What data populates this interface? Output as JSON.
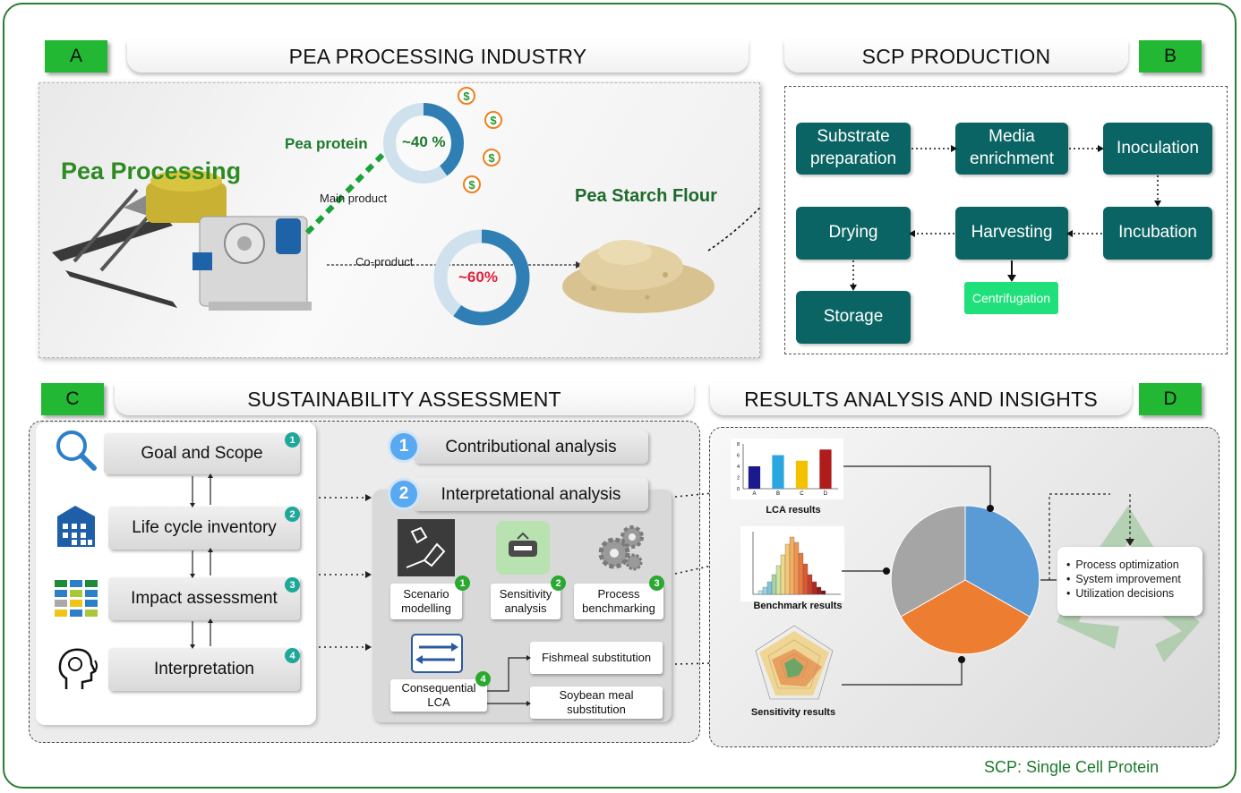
{
  "panel_a": {
    "letter": "A",
    "title": "PEA PROCESSING INDUSTRY",
    "pea_processing": "Pea Processing",
    "pea_protein": "Pea protein",
    "protein_share": "~40 %",
    "main_product": "Main product",
    "co_product": "Co-product",
    "starch_share": "~60%",
    "starch_flour": "Pea Starch Flour",
    "protein_fraction": 0.4,
    "starch_fraction": 0.6
  },
  "panel_b": {
    "letter": "B",
    "title": "SCP PRODUCTION",
    "steps": {
      "substrate": "Substrate preparation",
      "media": "Media enrichment",
      "inoculation": "Inoculation",
      "incubation": "Incubation",
      "harvesting": "Harvesting",
      "drying": "Drying",
      "storage": "Storage",
      "centrifugation": "Centrifugation"
    }
  },
  "panel_c": {
    "letter": "C",
    "title": "SUSTAINABILITY ASSESSMENT",
    "steps": [
      {
        "num": "1",
        "label": "Goal and Scope",
        "icon": "magnifier-icon"
      },
      {
        "num": "2",
        "label": "Life cycle inventory",
        "icon": "building-icon"
      },
      {
        "num": "3",
        "label": "Impact assessment",
        "icon": "matrix-icon"
      },
      {
        "num": "4",
        "label": "Interpretation",
        "icon": "head-icon"
      }
    ],
    "contributional": {
      "num": "1",
      "label": "Contributional analysis"
    },
    "interpretational": {
      "num": "2",
      "label": "Interpretational analysis"
    },
    "tools": [
      {
        "num": "1",
        "label": "Scenario modelling"
      },
      {
        "num": "2",
        "label": "Sensitivity analysis"
      },
      {
        "num": "3",
        "label": "Process benchmarking"
      },
      {
        "num": "4",
        "label": "Consequential LCA"
      }
    ],
    "substitutions": [
      "Fishmeal substitution",
      "Soybean meal substitution"
    ]
  },
  "panel_d": {
    "letter": "D",
    "title": "RESULTS ANALYSIS AND INSIGHTS",
    "lca_results": "LCA results",
    "benchmark_results": "Benchmark results",
    "sensitivity_results": "Sensitivity results",
    "lca_chart": {
      "categories": [
        "A",
        "B",
        "C",
        "D"
      ],
      "values": [
        4,
        6,
        5,
        7
      ],
      "ticks": [
        "0",
        "2",
        "4",
        "6",
        "8"
      ],
      "colors": [
        "#1a1a8c",
        "#2aa7e0",
        "#f2c200",
        "#b01b1b"
      ]
    },
    "insights": [
      "Process optimization",
      "System improvement",
      "Utilization decisions"
    ]
  },
  "colors": {
    "teal": "#0b6464",
    "green_letter": "#22b833",
    "pie_blue": "#5b9bd5",
    "pie_orange": "#ed7d31",
    "pie_gray": "#a5a5a5"
  },
  "footnote": "SCP: Single Cell Protein"
}
